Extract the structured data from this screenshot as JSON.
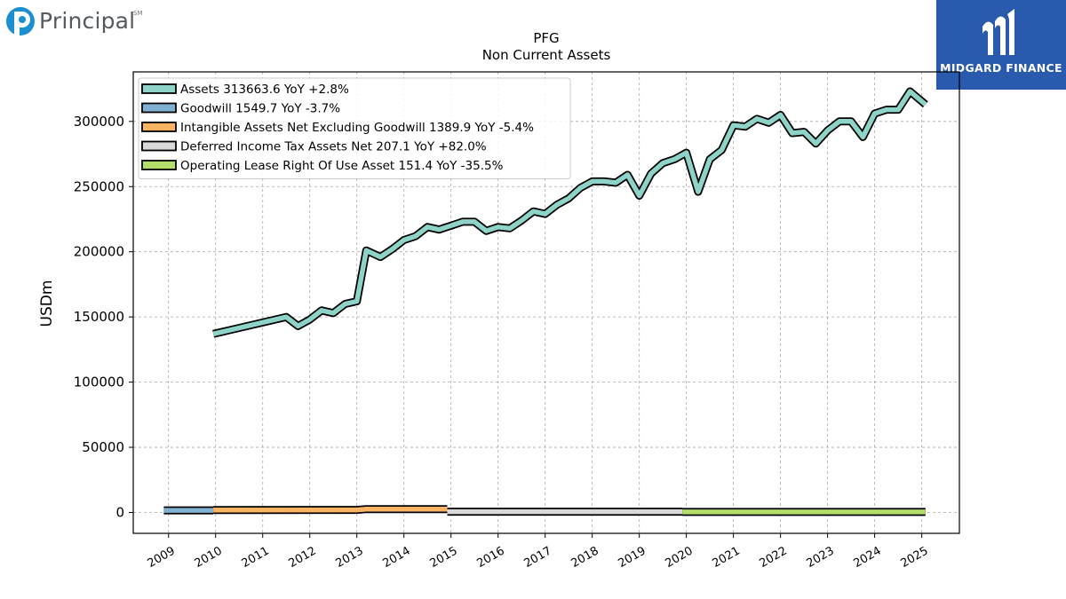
{
  "branding": {
    "left_logo_text": "Principal",
    "left_logo_mark": "SM",
    "right_logo_text": "MIDGARD FINANCE"
  },
  "chart_data": {
    "type": "line",
    "title": "PFG",
    "subtitle": "Non Current  Assets",
    "ylabel": "USDm",
    "xlabel": "",
    "ylim": [
      -16000,
      338000
    ],
    "xlim": [
      2008.25,
      2025.8
    ],
    "yticks": [
      0,
      50000,
      100000,
      150000,
      200000,
      250000,
      300000
    ],
    "xticks": [
      "2009",
      "2010",
      "2011",
      "2012",
      "2013",
      "2014",
      "2015",
      "2016",
      "2017",
      "2018",
      "2019",
      "2020",
      "2021",
      "2022",
      "2023",
      "2024",
      "2025"
    ],
    "grid": true,
    "legend_position": "top-left",
    "series": [
      {
        "name": "Assets",
        "legend": "Assets  313663.6 YoY +2.8%",
        "color": "#8dd3c7",
        "x": [
          2009.95,
          2011.5,
          2011.75,
          2012.0,
          2012.25,
          2012.5,
          2012.75,
          2013.0,
          2013.2,
          2013.5,
          2013.75,
          2014.0,
          2014.25,
          2014.5,
          2014.75,
          2015.0,
          2015.25,
          2015.5,
          2015.75,
          2016.0,
          2016.25,
          2016.5,
          2016.75,
          2017.0,
          2017.25,
          2017.5,
          2017.75,
          2018.0,
          2018.25,
          2018.5,
          2018.75,
          2019.0,
          2019.25,
          2019.5,
          2019.75,
          2020.0,
          2020.25,
          2020.5,
          2020.75,
          2021.0,
          2021.25,
          2021.5,
          2021.75,
          2022.0,
          2022.25,
          2022.5,
          2022.75,
          2023.0,
          2023.25,
          2023.5,
          2023.75,
          2024.0,
          2024.25,
          2024.5,
          2024.75,
          2025.08
        ],
        "y": [
          137000,
          150000,
          143000,
          148000,
          155000,
          153000,
          160000,
          162000,
          201000,
          196000,
          202000,
          209000,
          212000,
          219000,
          217000,
          220000,
          223000,
          223000,
          216000,
          219000,
          218000,
          224000,
          231000,
          229000,
          236000,
          241000,
          249000,
          254000,
          254000,
          253000,
          259000,
          243000,
          260000,
          268000,
          271000,
          276000,
          246000,
          271000,
          278000,
          297000,
          296000,
          302000,
          299000,
          305000,
          291000,
          292000,
          283000,
          293000,
          300000,
          300000,
          288000,
          306000,
          309000,
          309000,
          323000,
          313000
        ]
      },
      {
        "name": "Goodwill",
        "legend": "Goodwill  1549.7 YoY -3.7%",
        "color": "#80b1d3",
        "x": [
          2008.9,
          2009.95
        ],
        "y": [
          1600,
          1600
        ]
      },
      {
        "name": "Intangible Assets Net Excluding Goodwill",
        "legend": "Intangible Assets Net Excluding Goodwill  1389.9 YoY -5.4%",
        "color": "#fdb462",
        "x": [
          2009.95,
          2013.0,
          2013.2,
          2014.92
        ],
        "y": [
          1900,
          2000,
          2600,
          2500
        ]
      },
      {
        "name": "Deferred Income Tax Assets Net",
        "legend": "Deferred Income Tax Assets Net  207.1 YoY +82.0%",
        "color": "#d9d9d9",
        "x": [
          2014.92,
          2019.92
        ],
        "y": [
          600,
          600
        ]
      },
      {
        "name": "Operating Lease Right Of Use Asset",
        "legend": "Operating Lease Right Of Use Asset  151.4 YoY -35.5%",
        "color": "#b3de69",
        "x": [
          2019.92,
          2025.08
        ],
        "y": [
          400,
          400
        ]
      }
    ]
  }
}
